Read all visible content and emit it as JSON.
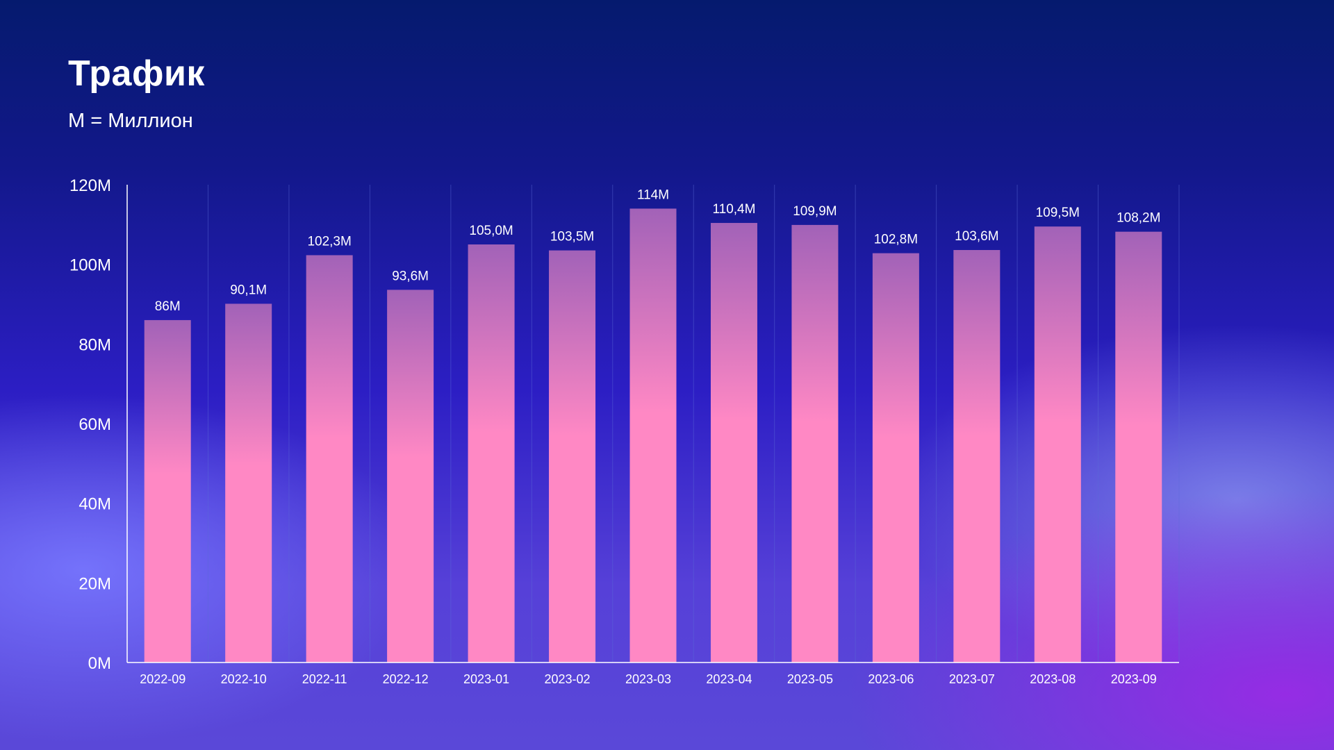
{
  "header": {
    "title": "Трафик",
    "subtitle": "M = Миллион"
  },
  "colors": {
    "bar_top": "#a262b8",
    "bar_bottom": "#ff88c4",
    "axis": "#ffffff",
    "gridline": "#5a6ad8"
  },
  "chart_data": {
    "type": "bar",
    "title": "Трафик",
    "subtitle": "M = Миллион",
    "xlabel": "",
    "ylabel": "",
    "ylim": [
      0,
      120
    ],
    "y_ticks": [
      {
        "value": 0,
        "label": "0M"
      },
      {
        "value": 20,
        "label": "20M"
      },
      {
        "value": 40,
        "label": "40M"
      },
      {
        "value": 60,
        "label": "60M"
      },
      {
        "value": 80,
        "label": "80M"
      },
      {
        "value": 100,
        "label": "100M"
      },
      {
        "value": 120,
        "label": "120M"
      }
    ],
    "grid": "vertical",
    "categories": [
      "2022-09",
      "2022-10",
      "2022-11",
      "2022-12",
      "2023-01",
      "2023-02",
      "2023-03",
      "2023-04",
      "2023-05",
      "2023-06",
      "2023-07",
      "2023-08",
      "2023-09"
    ],
    "values": [
      86,
      90.1,
      102.3,
      93.6,
      105.0,
      103.5,
      114,
      110.4,
      109.9,
      102.8,
      103.6,
      109.5,
      108.2
    ],
    "data_labels": [
      "86M",
      "90,1M",
      "102,3M",
      "93,6M",
      "105,0M",
      "103,5M",
      "114M",
      "110,4M",
      "109,9M",
      "102,8M",
      "103,6M",
      "109,5M",
      "108,2M"
    ]
  }
}
